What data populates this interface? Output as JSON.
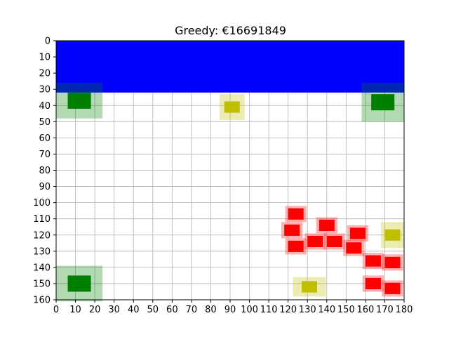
{
  "chart_data": {
    "type": "heatmap",
    "title": "Greedy: €16691849",
    "xlabel": "",
    "ylabel": "",
    "xlim": [
      0,
      180
    ],
    "ylim": [
      160,
      0
    ],
    "y_inverted": true,
    "grid": true,
    "x_ticks": [
      0,
      10,
      20,
      30,
      40,
      50,
      60,
      70,
      80,
      90,
      100,
      110,
      120,
      130,
      140,
      150,
      160,
      170,
      180
    ],
    "y_ticks": [
      0,
      10,
      20,
      30,
      40,
      50,
      60,
      70,
      80,
      90,
      100,
      110,
      120,
      130,
      140,
      150,
      160
    ],
    "colors": {
      "water": "#0000ff",
      "green": "#008000",
      "yellow": "#bfbf00",
      "red": "#ff0000",
      "grid": "#b0b0b0"
    },
    "regions": [
      {
        "kind": "blue-band",
        "x": [
          0,
          180
        ],
        "y": [
          0,
          32
        ]
      }
    ],
    "items": [
      {
        "color": "green",
        "x": 12,
        "y": 37,
        "halo": [
          24,
          22
        ]
      },
      {
        "color": "green",
        "x": 169,
        "y": 38,
        "halo": [
          22,
          24
        ]
      },
      {
        "color": "green",
        "x": 12,
        "y": 150,
        "halo": [
          24,
          22
        ]
      },
      {
        "color": "yellow",
        "x": 91,
        "y": 41,
        "halo": [
          13,
          16
        ]
      },
      {
        "color": "yellow",
        "x": 174,
        "y": 120,
        "halo": [
          12,
          16
        ]
      },
      {
        "color": "yellow",
        "x": 131,
        "y": 152,
        "halo": [
          17,
          12
        ]
      },
      {
        "color": "red",
        "x": 124,
        "y": 107,
        "halo": [
          11,
          10
        ]
      },
      {
        "color": "red",
        "x": 122,
        "y": 117,
        "halo": [
          11,
          10
        ]
      },
      {
        "color": "red",
        "x": 124,
        "y": 127,
        "halo": [
          11,
          10
        ]
      },
      {
        "color": "red",
        "x": 140,
        "y": 114,
        "halo": [
          11,
          10
        ]
      },
      {
        "color": "red",
        "x": 134,
        "y": 124,
        "halo": [
          11,
          10
        ]
      },
      {
        "color": "red",
        "x": 144,
        "y": 124,
        "halo": [
          11,
          10
        ]
      },
      {
        "color": "red",
        "x": 156,
        "y": 119,
        "halo": [
          11,
          10
        ]
      },
      {
        "color": "red",
        "x": 154,
        "y": 128,
        "halo": [
          11,
          10
        ]
      },
      {
        "color": "red",
        "x": 164,
        "y": 136,
        "halo": [
          11,
          10
        ]
      },
      {
        "color": "red",
        "x": 174,
        "y": 137,
        "halo": [
          11,
          10
        ]
      },
      {
        "color": "red",
        "x": 164,
        "y": 150,
        "halo": [
          11,
          10
        ]
      },
      {
        "color": "red",
        "x": 174,
        "y": 153,
        "halo": [
          11,
          10
        ]
      }
    ]
  }
}
